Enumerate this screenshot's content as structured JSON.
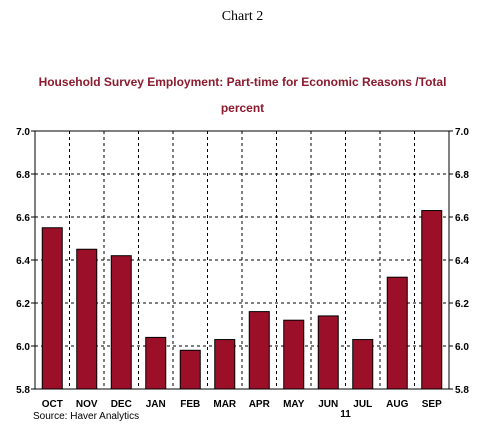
{
  "page_heading": "Chart 2",
  "source": "Source: Haver Analytics",
  "chart_data": {
    "type": "bar",
    "title": "Household Survey Employment: Part-time for Economic Reasons /Total",
    "subtitle": "percent",
    "categories": [
      "OCT",
      "NOV",
      "DEC",
      "JAN",
      "FEB",
      "MAR",
      "APR",
      "MAY",
      "JUN",
      "JUL",
      "AUG",
      "SEP"
    ],
    "year_label": "11",
    "values": [
      6.55,
      6.45,
      6.42,
      6.04,
      5.98,
      6.03,
      6.16,
      6.12,
      6.14,
      6.03,
      6.32,
      6.63
    ],
    "ylim": [
      5.8,
      7.0
    ],
    "yticks": [
      "5.8",
      "6.0",
      "6.2",
      "6.4",
      "6.6",
      "6.8",
      "7.0"
    ],
    "y_axis_both_sides": true,
    "grid": true,
    "bar_color": "#9b1028"
  }
}
